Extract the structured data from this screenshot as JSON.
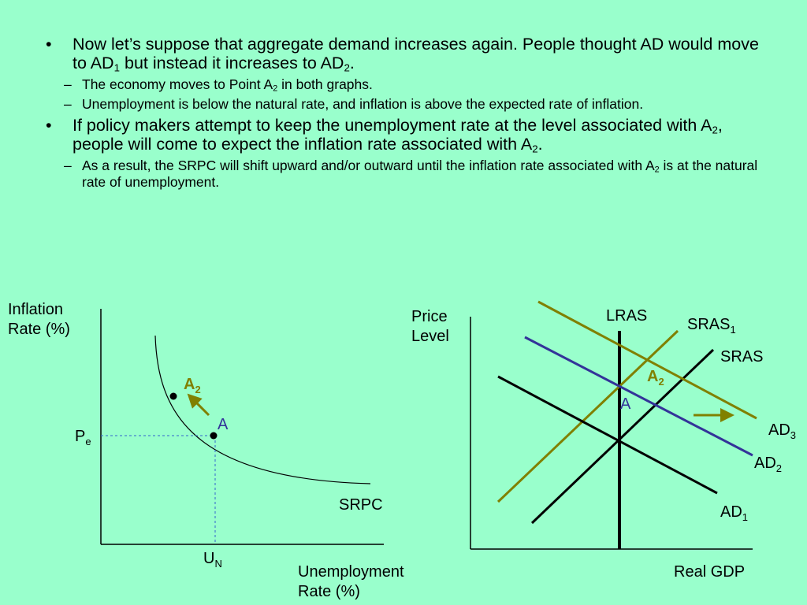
{
  "text": {
    "b1": {
      "p1": "Now let’s suppose that aggregate demand increases again. People thought AD would move to AD",
      "s1": "1",
      "p2": " but instead it increases to AD",
      "s2": "2",
      "p3": "."
    },
    "b1a": {
      "p1": "The economy moves to Point A",
      "s1": "2",
      "p2": " in both graphs."
    },
    "b1b": {
      "p1": "Unemployment is below the natural rate, and inflation is above the expected rate of inflation."
    },
    "b2": {
      "p1": "If policy makers attempt to keep the unemployment rate at the level associated with A",
      "s1": "2",
      "p2": ", people will come to expect the inflation rate associated with A",
      "s2": "2",
      "p3": "."
    },
    "b2a": {
      "p1": "As a result, the SRPC will shift upward and/or outward until the inflation rate associated with A",
      "s1": "2",
      "p2": " is at the natural rate of unemployment."
    },
    "bullet_marker": "•",
    "dash_marker": "–"
  },
  "left_graph": {
    "y_label_1": "Inflation",
    "y_label_2": "Rate (%)",
    "x_label_1": "Unemployment",
    "x_label_2": "Rate (%)",
    "curve_label": "SRPC",
    "point_a": "A",
    "point_a2": "A",
    "point_a2_sub": "2",
    "pe": "P",
    "pe_sub": "e",
    "un": "U",
    "un_sub": "N"
  },
  "right_graph": {
    "y_label_1": "Price",
    "y_label_2": "Level",
    "x_label": "Real GDP",
    "lras": "LRAS",
    "sras1": "SRAS",
    "sras1_sub": "1",
    "sras": "SRAS",
    "ad1": "AD",
    "ad1_sub": "1",
    "ad2": "AD",
    "ad2_sub": "2",
    "ad3": "AD",
    "ad3_sub": "3",
    "point_a": "A",
    "point_a2": "A",
    "point_a2_sub": "2"
  },
  "colors": {
    "background": "#99ffcc",
    "olive": "#808000",
    "blue": "#333399",
    "black": "#000000"
  }
}
